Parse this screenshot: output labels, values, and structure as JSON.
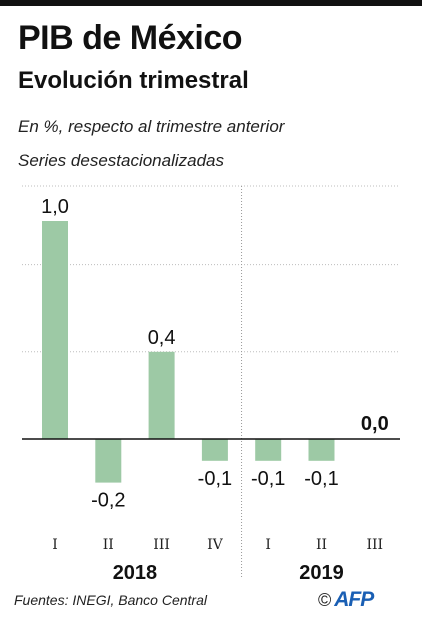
{
  "header": {
    "title": "PIB de México",
    "subtitle": "Evolución trimestral",
    "note1": "En %, respecto al trimestre anterior",
    "note2": "Series desestacionalizadas"
  },
  "footer": {
    "source": "Fuentes: INEGI, Banco Central",
    "copyright": "©",
    "logo_text": "AFP"
  },
  "colors": {
    "bar": "#9dc9a5",
    "axis": "#111111",
    "grid": "#bdbdbd",
    "logo": "#1a5fb4"
  },
  "chart_data": {
    "type": "bar",
    "categories": [
      "I",
      "II",
      "III",
      "IV",
      "I",
      "II",
      "III"
    ],
    "groups": [
      {
        "label": "2018",
        "from": 0,
        "to": 3
      },
      {
        "label": "2019",
        "from": 4,
        "to": 6
      }
    ],
    "values": [
      1.0,
      -0.2,
      0.4,
      -0.1,
      -0.1,
      -0.1,
      0.0
    ],
    "value_labels": [
      "1,0",
      "-0,2",
      "0,4",
      "-0,1",
      "-0,1",
      "-0,1",
      "0,0"
    ],
    "highlight_last": true,
    "ylim": [
      -0.3,
      1.15
    ],
    "grid": true,
    "xlabel": "",
    "ylabel": ""
  }
}
